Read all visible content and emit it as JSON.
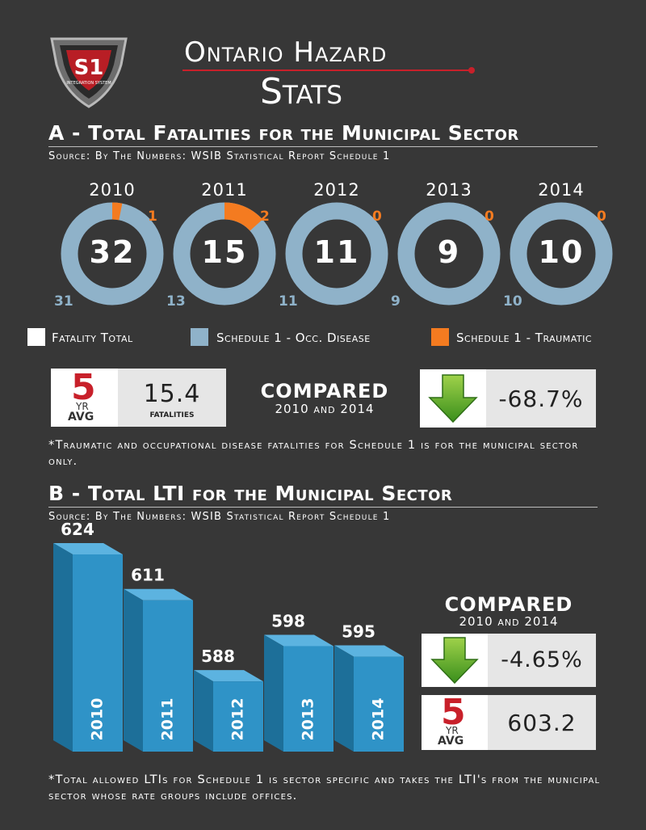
{
  "logo": {
    "text": "S1",
    "subtext": "INTEGRATION SYSTEM"
  },
  "title": {
    "line1": "Ontario Hazard",
    "line2": "Stats"
  },
  "section_a": {
    "heading": "A - Total Fatalities for the Municipal Sector",
    "source": "Source: By The Numbers: WSIB Statistical Report Schedule 1",
    "legend": [
      {
        "label": "Fatality Total",
        "color": "#ffffff"
      },
      {
        "label": "Schedule 1 - Occ. Disease",
        "color": "#8fb2c9"
      },
      {
        "label": "Schedule 1 - Traumatic",
        "color": "#f47b20"
      }
    ],
    "avg_label_num": "5",
    "avg_label_yr": "YR",
    "avg_label_avg": "AVG",
    "avg_value": "15.4",
    "avg_unit": "fatalities",
    "compared_title": "COMPARED",
    "compared_sub": "2010 and 2014",
    "change": "-68.7%",
    "note": "*Traumatic and occupational disease fatalities for Schedule 1 is for the municipal sector only."
  },
  "section_b": {
    "heading": "B - Total LTI for the Municipal Sector",
    "source": "Source: By The Numbers: WSIB Statistical Report Schedule 1",
    "compared_title": "COMPARED",
    "compared_sub": "2010 and 2014",
    "change": "-4.65%",
    "avg_label_num": "5",
    "avg_label_yr": "YR",
    "avg_label_avg": "AVG",
    "avg_value": "603.2",
    "note": "*Total allowed LTIs for Schedule 1 is sector specific and takes the LTI's from the municipal sector whose rate groups include offices."
  },
  "chart_data": [
    {
      "type": "pie",
      "years": [
        "2010",
        "2011",
        "2012",
        "2013",
        "2014"
      ],
      "totals": [
        "32",
        "15",
        "11",
        "9",
        "10"
      ],
      "series": [
        {
          "name": "Schedule 1 - Occ. Disease",
          "values": [
            31,
            13,
            11,
            9,
            10
          ],
          "labels": [
            "31",
            "13",
            "11",
            "9",
            "10"
          ],
          "color": "#8fb2c9"
        },
        {
          "name": "Schedule 1 - Traumatic",
          "values": [
            1,
            2,
            0,
            0,
            0
          ],
          "labels": [
            "1",
            "2",
            "0",
            "0",
            "0"
          ],
          "color": "#f47b20"
        }
      ]
    },
    {
      "type": "bar",
      "categories": [
        "2010",
        "2011",
        "2012",
        "2013",
        "2014"
      ],
      "values": [
        624,
        611,
        588,
        598,
        595
      ],
      "value_labels": [
        "624",
        "611",
        "588",
        "598",
        "595"
      ],
      "color": "#2f93c7"
    }
  ]
}
